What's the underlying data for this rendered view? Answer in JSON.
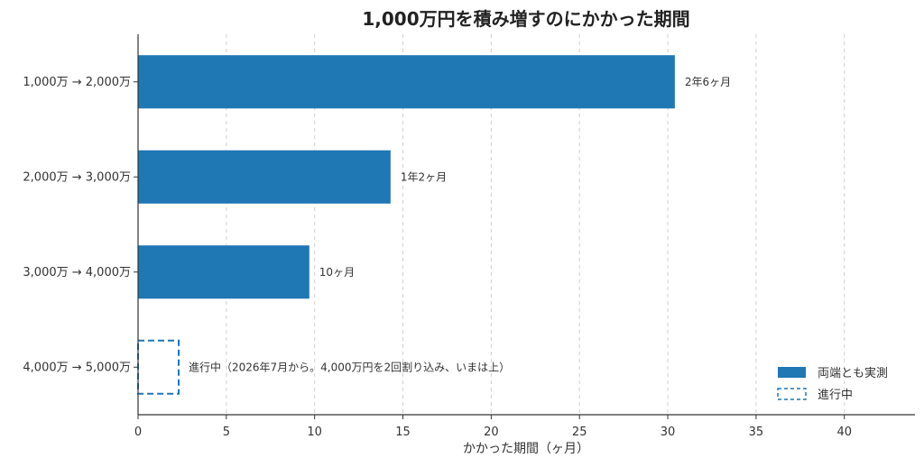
{
  "chart_data": {
    "type": "bar",
    "orientation": "horizontal",
    "title": "1,000万円を積み増すのにかかった期間",
    "xlabel": "かかった期間（ヶ月）",
    "ylabel": "",
    "xlim": [
      0,
      44
    ],
    "xticks": [
      0,
      5,
      10,
      15,
      20,
      25,
      30,
      35,
      40
    ],
    "grid": "x-dashed",
    "legend_position": "bottom-right",
    "categories": [
      "1,000万 → 2,000万",
      "2,000万 → 3,000万",
      "3,000万 → 4,000万",
      "4,000万 → 5,000万"
    ],
    "values": [
      30.4,
      14.3,
      9.7,
      2.3
    ],
    "bar_labels": [
      "2年6ヶ月",
      "1年2ヶ月",
      "10ヶ月",
      "進行中（2026年7月から。4,000万円を2回割り込み、いまは上）"
    ],
    "bar_styles": [
      "solid",
      "solid",
      "solid",
      "dashed"
    ],
    "colors": {
      "bar": "#1f77b4",
      "axis": "#333333",
      "grid": "#cfcfcf"
    },
    "legend": [
      {
        "label": "両端とも実測",
        "style": "solid"
      },
      {
        "label": "進行中",
        "style": "dashed"
      }
    ]
  }
}
